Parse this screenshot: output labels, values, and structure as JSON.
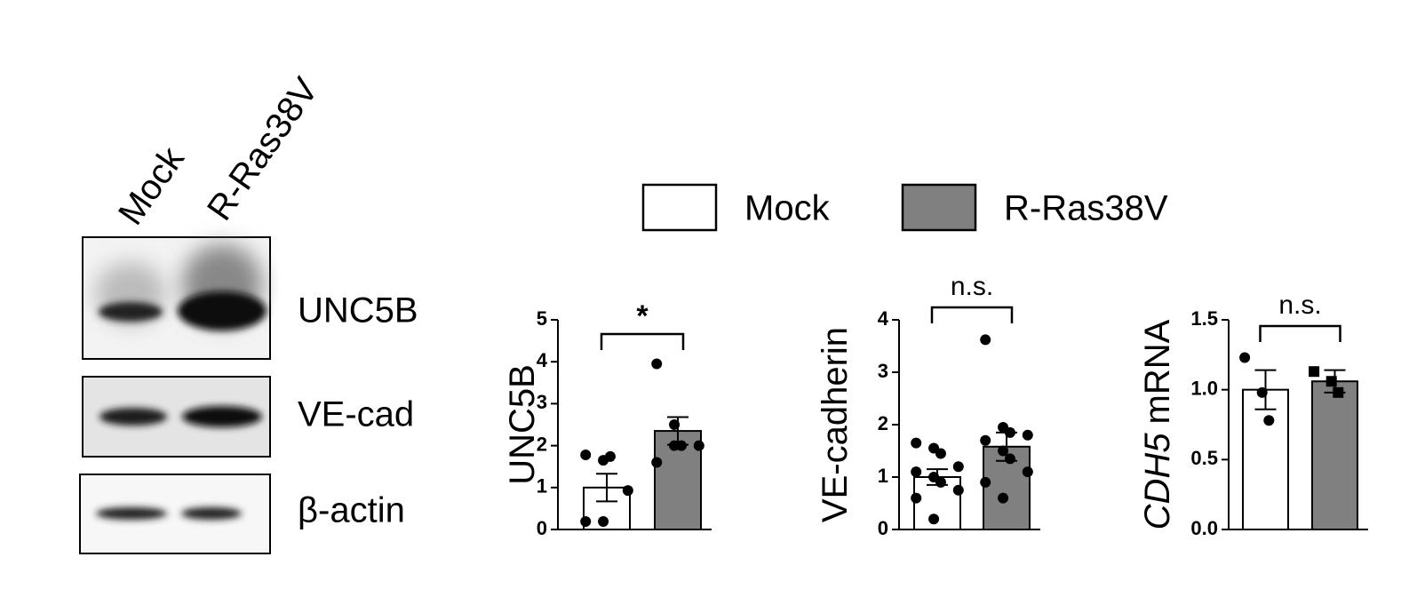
{
  "blot": {
    "lanes": [
      "Mock",
      "R-Ras38V"
    ],
    "rows": [
      "UNC5B",
      "VE-cad",
      "β-actin"
    ]
  },
  "legend": [
    {
      "name": "Mock",
      "color": "#ffffff"
    },
    {
      "name": "R-Ras38V",
      "color": "#808080"
    }
  ],
  "chart_data": [
    {
      "type": "bar",
      "ylabel": [
        "UNC5B"
      ],
      "ylim": [
        0,
        5
      ],
      "yticks": [
        0,
        1,
        2,
        3,
        4,
        5
      ],
      "values": [
        1.0,
        2.35
      ],
      "errors": [
        0.33,
        0.33
      ],
      "significance": "*",
      "markers": [
        "circle",
        "circle"
      ],
      "points": [
        [
          1.78,
          1.65,
          1.74,
          0.93,
          0.19,
          0.19
        ],
        [
          3.95,
          2.5,
          2.0,
          2.0,
          1.6,
          2.0
        ]
      ]
    },
    {
      "type": "bar",
      "ylabel": [
        "VE-cadherin"
      ],
      "ylim": [
        0,
        4
      ],
      "yticks": [
        0,
        1,
        2,
        3,
        4
      ],
      "values": [
        1.0,
        1.58
      ],
      "errors": [
        0.15,
        0.27
      ],
      "significance": "n.s.",
      "markers": [
        "circle",
        "circle"
      ],
      "points": [
        [
          1.65,
          1.55,
          1.45,
          1.2,
          1.1,
          1.0,
          0.9,
          0.75,
          0.6,
          0.2
        ],
        [
          3.62,
          1.95,
          1.85,
          1.8,
          1.7,
          1.5,
          1.35,
          1.1,
          0.9,
          0.6
        ]
      ]
    },
    {
      "type": "bar",
      "ylabel": [
        "CDH5",
        "mRNA"
      ],
      "ylim": [
        0,
        1.5
      ],
      "yticks": [
        {
          "value": 0,
          "label": "0.0"
        },
        {
          "value": 0.5,
          "label": "0.5"
        },
        {
          "value": 1,
          "label": "1.0"
        },
        {
          "value": 1.5,
          "label": "1.5"
        }
      ],
      "values": [
        1.0,
        1.06
      ],
      "errors": [
        0.14,
        0.08
      ],
      "significance": "n.s.",
      "markers": [
        "circle",
        "square"
      ],
      "points": [
        [
          1.23,
          0.98,
          0.78
        ],
        [
          1.13,
          1.06,
          0.98
        ]
      ]
    }
  ]
}
